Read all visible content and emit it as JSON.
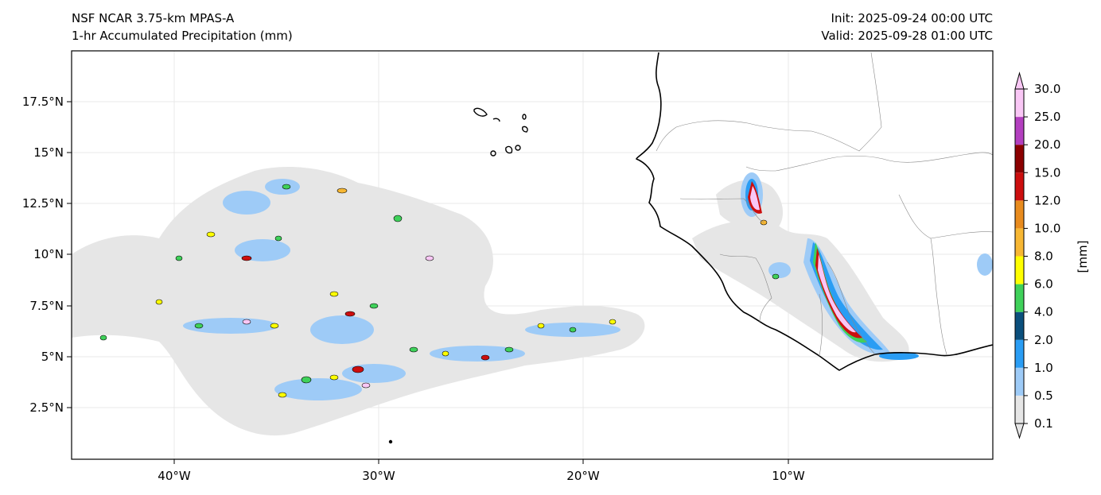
{
  "header": {
    "model": "NSF NCAR 3.75-km MPAS-A",
    "field": "1-hr Accumulated Precipitation (mm)",
    "init": "Init: 2025-09-24 00:00 UTC",
    "valid": "Valid: 2025-09-28 01:00 UTC"
  },
  "map": {
    "lat_ticks": [
      "17.5°N",
      "15°N",
      "12.5°N",
      "10°N",
      "7.5°N",
      "5°N",
      "2.5°N"
    ],
    "lon_ticks": [
      "40°W",
      "30°W",
      "20°W",
      "10°W"
    ]
  },
  "colorbar": {
    "unit": "[mm]",
    "levels": [
      "0.1",
      "0.5",
      "1.0",
      "2.0",
      "4.0",
      "6.0",
      "8.0",
      "10.0",
      "12.0",
      "15.0",
      "20.0",
      "25.0",
      "30.0"
    ],
    "colors": [
      "#e6e6e6",
      "#9ecbf7",
      "#2a9df4",
      "#0b4f7c",
      "#3fd15a",
      "#ffff00",
      "#f7b733",
      "#e88b1e",
      "#cc0e0e",
      "#8b0000",
      "#b33fbf",
      "#f9c7f5"
    ]
  }
}
